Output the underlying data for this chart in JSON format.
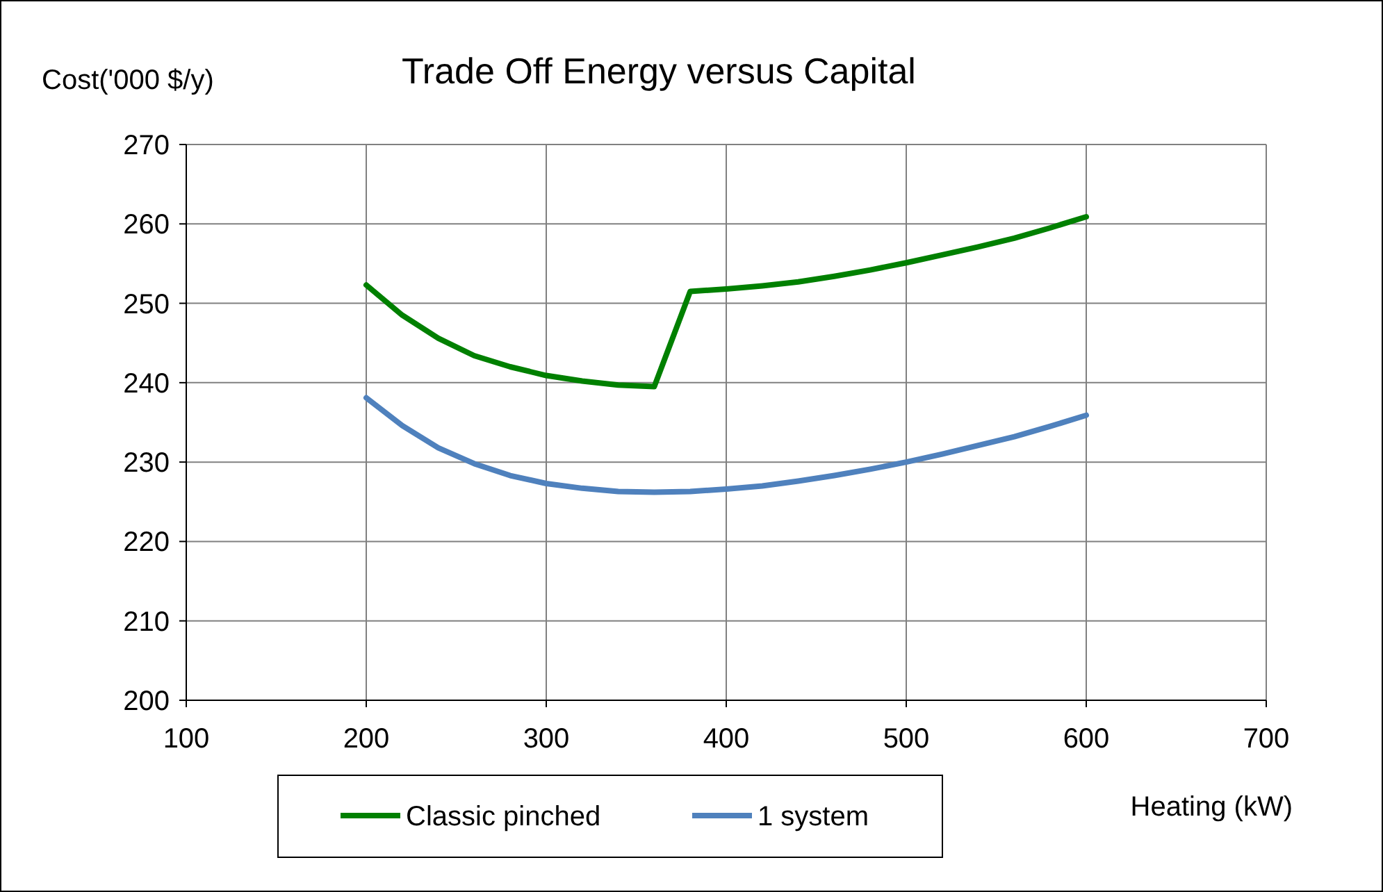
{
  "chart_data": {
    "type": "line",
    "title": "Trade Off Energy versus Capital",
    "xlabel": "Heating (kW)",
    "ylabel": "Cost('000 $/y)",
    "x": [
      200,
      220,
      240,
      260,
      280,
      300,
      320,
      340,
      360,
      380,
      400,
      420,
      440,
      460,
      480,
      500,
      520,
      540,
      560,
      580,
      600
    ],
    "series": [
      {
        "name": "Classic pinched",
        "color": "#008000",
        "values": [
          252.3,
          248.5,
          245.6,
          243.4,
          242.0,
          240.9,
          240.2,
          239.7,
          239.5,
          251.5,
          251.8,
          252.2,
          252.7,
          253.4,
          254.2,
          255.1,
          256.1,
          257.1,
          258.2,
          259.5,
          260.9
        ]
      },
      {
        "name": "1 system",
        "color": "#4f81bd",
        "values": [
          238.1,
          234.6,
          231.8,
          229.8,
          228.3,
          227.3,
          226.7,
          226.3,
          226.2,
          226.3,
          226.6,
          227.0,
          227.6,
          228.3,
          229.1,
          230.0,
          231.0,
          232.1,
          233.2,
          234.5,
          235.9
        ]
      }
    ],
    "xlim": [
      100,
      700
    ],
    "xticks": [
      100,
      200,
      300,
      400,
      500,
      600,
      700
    ],
    "ylim": [
      200,
      270
    ],
    "yticks": [
      200,
      210,
      220,
      230,
      240,
      250,
      260,
      270
    ],
    "grid": true,
    "legend": "bottom",
    "marker": "none",
    "line_style": "solid"
  }
}
